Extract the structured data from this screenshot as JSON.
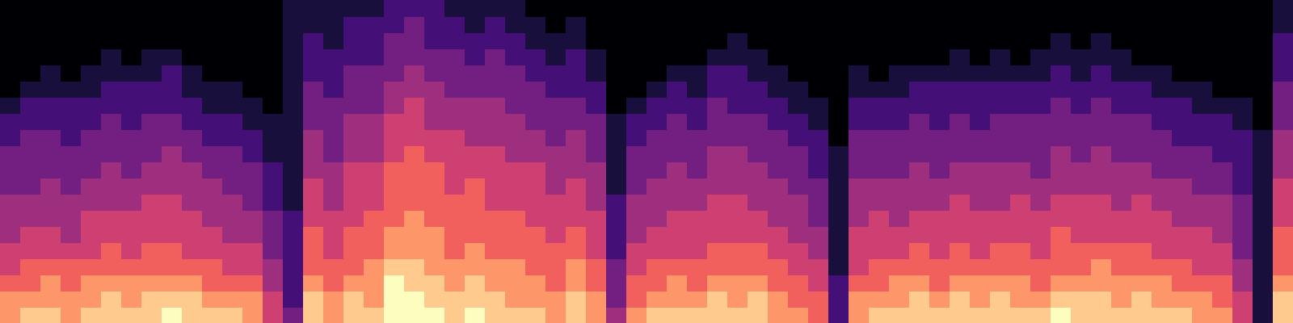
{
  "chart_data": {
    "type": "heatmap",
    "color": "magma",
    "tick_labels": false,
    "cells": [
      [
        7,
        7,
        6,
        5,
        5,
        4,
        4,
        4,
        3,
        3,
        3,
        2,
        2,
        1,
        0,
        0,
        0,
        0,
        0,
        0
      ],
      [
        8,
        7,
        6,
        6,
        5,
        5,
        4,
        4,
        3,
        3,
        3,
        3,
        2,
        2,
        1,
        0,
        0,
        0,
        0,
        0
      ],
      [
        8,
        7,
        7,
        6,
        5,
        5,
        4,
        4,
        4,
        3,
        3,
        3,
        2,
        2,
        1,
        1,
        0,
        0,
        0,
        0
      ],
      [
        7,
        7,
        6,
        6,
        5,
        4,
        4,
        4,
        3,
        3,
        3,
        2,
        2,
        2,
        1,
        0,
        0,
        0,
        0,
        0
      ],
      [
        8,
        7,
        7,
        6,
        5,
        5,
        5,
        4,
        4,
        3,
        3,
        3,
        2,
        2,
        1,
        1,
        0,
        0,
        0,
        0
      ],
      [
        8,
        8,
        7,
        6,
        6,
        5,
        5,
        4,
        4,
        4,
        3,
        3,
        3,
        2,
        2,
        1,
        1,
        0,
        0,
        0
      ],
      [
        8,
        7,
        7,
        6,
        5,
        5,
        5,
        4,
        4,
        3,
        3,
        3,
        2,
        2,
        2,
        1,
        0,
        0,
        0,
        0
      ],
      [
        8,
        8,
        7,
        6,
        6,
        5,
        5,
        5,
        4,
        4,
        3,
        3,
        3,
        2,
        2,
        1,
        1,
        0,
        0,
        0
      ],
      [
        9,
        8,
        7,
        6,
        6,
        5,
        5,
        5,
        4,
        4,
        4,
        3,
        3,
        2,
        2,
        2,
        1,
        0,
        0,
        0
      ],
      [
        8,
        8,
        7,
        6,
        5,
        5,
        5,
        4,
        4,
        4,
        3,
        3,
        2,
        2,
        1,
        1,
        0,
        0,
        0,
        0
      ],
      [
        8,
        7,
        6,
        6,
        5,
        5,
        4,
        4,
        4,
        3,
        3,
        2,
        2,
        1,
        1,
        0,
        0,
        0,
        0,
        0
      ],
      [
        8,
        7,
        6,
        5,
        5,
        4,
        4,
        4,
        3,
        3,
        3,
        2,
        2,
        1,
        1,
        0,
        0,
        0,
        0,
        0
      ],
      [
        7,
        7,
        6,
        5,
        5,
        4,
        4,
        3,
        3,
        3,
        2,
        2,
        1,
        1,
        0,
        0,
        0,
        0,
        0,
        0
      ],
      [
        5,
        5,
        4,
        4,
        3,
        3,
        3,
        2,
        2,
        2,
        1,
        1,
        1,
        0,
        0,
        0,
        0,
        0,
        0,
        0
      ],
      [
        3,
        2,
        2,
        2,
        2,
        2,
        2,
        1,
        1,
        1,
        1,
        1,
        1,
        1,
        1,
        1,
        1,
        1,
        1,
        1
      ],
      [
        8,
        8,
        7,
        6,
        6,
        6,
        5,
        5,
        5,
        4,
        4,
        4,
        3,
        3,
        3,
        2,
        2,
        2,
        1,
        1
      ],
      [
        7,
        7,
        6,
        6,
        5,
        5,
        5,
        4,
        4,
        4,
        3,
        3,
        3,
        3,
        2,
        2,
        2,
        1,
        1,
        1
      ],
      [
        8,
        8,
        7,
        6,
        6,
        6,
        5,
        5,
        5,
        5,
        4,
        4,
        4,
        3,
        3,
        3,
        2,
        2,
        2,
        1
      ],
      [
        8,
        7,
        7,
        7,
        6,
        6,
        6,
        5,
        5,
        5,
        4,
        4,
        4,
        3,
        3,
        3,
        2,
        2,
        2,
        1
      ],
      [
        9,
        9,
        9,
        8,
        7,
        7,
        6,
        6,
        6,
        6,
        5,
        5,
        5,
        4,
        4,
        3,
        3,
        3,
        2,
        2
      ],
      [
        9,
        9,
        8,
        8,
        7,
        7,
        7,
        6,
        6,
        6,
        6,
        5,
        5,
        5,
        4,
        4,
        3,
        3,
        3,
        2
      ],
      [
        9,
        8,
        8,
        7,
        7,
        7,
        6,
        6,
        6,
        6,
        5,
        5,
        4,
        4,
        4,
        3,
        3,
        2,
        2,
        2
      ],
      [
        8,
        8,
        7,
        7,
        6,
        6,
        6,
        6,
        5,
        5,
        5,
        5,
        4,
        4,
        3,
        3,
        3,
        2,
        2,
        1
      ],
      [
        9,
        8,
        8,
        7,
        7,
        6,
        6,
        6,
        6,
        5,
        5,
        4,
        4,
        4,
        3,
        3,
        2,
        2,
        1,
        1
      ],
      [
        8,
        8,
        7,
        7,
        6,
        6,
        6,
        5,
        5,
        5,
        5,
        4,
        4,
        4,
        3,
        3,
        3,
        2,
        2,
        1
      ],
      [
        8,
        7,
        7,
        7,
        6,
        6,
        6,
        5,
        5,
        5,
        4,
        4,
        4,
        3,
        3,
        3,
        2,
        2,
        1,
        1
      ],
      [
        8,
        7,
        7,
        6,
        6,
        6,
        5,
        5,
        5,
        5,
        4,
        4,
        3,
        3,
        3,
        2,
        2,
        1,
        1,
        0
      ],
      [
        7,
        7,
        6,
        6,
        6,
        5,
        5,
        5,
        4,
        4,
        4,
        3,
        3,
        3,
        2,
        2,
        1,
        1,
        0,
        0
      ],
      [
        8,
        8,
        7,
        7,
        6,
        6,
        5,
        5,
        5,
        4,
        4,
        4,
        3,
        3,
        2,
        2,
        2,
        1,
        1,
        0
      ],
      [
        7,
        7,
        6,
        6,
        5,
        5,
        5,
        4,
        4,
        4,
        3,
        3,
        3,
        2,
        2,
        1,
        1,
        0,
        0,
        0
      ],
      [
        4,
        3,
        3,
        3,
        2,
        2,
        2,
        2,
        1,
        1,
        1,
        1,
        1,
        0,
        0,
        0,
        0,
        0,
        0,
        0
      ],
      [
        7,
        6,
        6,
        5,
        5,
        4,
        4,
        4,
        3,
        3,
        3,
        2,
        2,
        1,
        0,
        0,
        0,
        0,
        0,
        0
      ],
      [
        8,
        7,
        6,
        6,
        5,
        5,
        4,
        4,
        4,
        3,
        3,
        3,
        2,
        2,
        1,
        0,
        0,
        0,
        0,
        0
      ],
      [
        8,
        7,
        7,
        6,
        5,
        5,
        5,
        4,
        4,
        4,
        3,
        3,
        3,
        2,
        2,
        1,
        0,
        0,
        0,
        0
      ],
      [
        8,
        7,
        6,
        6,
        5,
        5,
        5,
        4,
        4,
        3,
        3,
        3,
        2,
        2,
        1,
        1,
        0,
        0,
        0,
        0
      ],
      [
        8,
        8,
        7,
        6,
        6,
        5,
        5,
        5,
        4,
        4,
        4,
        3,
        3,
        3,
        2,
        2,
        1,
        0,
        0,
        0
      ],
      [
        8,
        7,
        7,
        6,
        6,
        5,
        5,
        5,
        4,
        4,
        4,
        3,
        3,
        2,
        2,
        2,
        1,
        1,
        0,
        0
      ],
      [
        8,
        8,
        7,
        6,
        6,
        5,
        5,
        4,
        4,
        4,
        3,
        3,
        3,
        2,
        2,
        1,
        1,
        0,
        0,
        0
      ],
      [
        7,
        7,
        6,
        6,
        5,
        5,
        4,
        4,
        4,
        3,
        3,
        3,
        2,
        2,
        1,
        1,
        0,
        0,
        0,
        0
      ],
      [
        7,
        6,
        6,
        5,
        5,
        4,
        4,
        4,
        3,
        3,
        3,
        2,
        2,
        1,
        1,
        0,
        0,
        0,
        0,
        0
      ],
      [
        6,
        6,
        5,
        5,
        4,
        4,
        3,
        3,
        3,
        2,
        2,
        2,
        1,
        1,
        0,
        0,
        0,
        0,
        0,
        0
      ],
      [
        2,
        2,
        2,
        1,
        1,
        1,
        1,
        1,
        1,
        1,
        1,
        0,
        0,
        0,
        0,
        0,
        0,
        0,
        0,
        0
      ],
      [
        7,
        7,
        6,
        5,
        5,
        5,
        4,
        4,
        4,
        3,
        3,
        3,
        2,
        2,
        1,
        1,
        0,
        0,
        0,
        0
      ],
      [
        8,
        7,
        6,
        6,
        5,
        5,
        5,
        4,
        4,
        3,
        3,
        3,
        2,
        2,
        1,
        0,
        0,
        0,
        0,
        0
      ],
      [
        8,
        7,
        7,
        6,
        5,
        5,
        4,
        4,
        4,
        3,
        3,
        3,
        2,
        2,
        1,
        1,
        0,
        0,
        0,
        0
      ],
      [
        8,
        8,
        7,
        6,
        6,
        5,
        5,
        4,
        4,
        4,
        3,
        3,
        3,
        2,
        2,
        1,
        0,
        0,
        0,
        0
      ],
      [
        8,
        7,
        6,
        6,
        5,
        5,
        5,
        4,
        4,
        3,
        3,
        3,
        2,
        2,
        2,
        1,
        0,
        0,
        0,
        0
      ],
      [
        8,
        8,
        7,
        6,
        6,
        5,
        5,
        5,
        4,
        4,
        3,
        3,
        3,
        2,
        2,
        1,
        1,
        0,
        0,
        0
      ],
      [
        8,
        7,
        7,
        6,
        5,
        5,
        5,
        4,
        4,
        4,
        3,
        3,
        2,
        2,
        2,
        1,
        0,
        0,
        0,
        0
      ],
      [
        8,
        8,
        7,
        6,
        6,
        5,
        5,
        4,
        4,
        4,
        3,
        3,
        3,
        2,
        2,
        1,
        1,
        0,
        0,
        0
      ],
      [
        8,
        7,
        7,
        6,
        6,
        5,
        5,
        5,
        4,
        4,
        3,
        3,
        3,
        2,
        2,
        1,
        0,
        0,
        0,
        0
      ],
      [
        8,
        7,
        6,
        6,
        5,
        5,
        5,
        4,
        4,
        3,
        3,
        3,
        3,
        2,
        2,
        1,
        1,
        0,
        0,
        0
      ],
      [
        9,
        8,
        7,
        6,
        6,
        6,
        5,
        5,
        4,
        4,
        4,
        3,
        3,
        3,
        2,
        2,
        1,
        1,
        0,
        0
      ],
      [
        8,
        8,
        7,
        6,
        6,
        5,
        5,
        5,
        4,
        4,
        3,
        3,
        3,
        2,
        2,
        1,
        1,
        0,
        0,
        0
      ],
      [
        8,
        8,
        7,
        7,
        6,
        5,
        5,
        5,
        4,
        4,
        4,
        3,
        3,
        3,
        2,
        2,
        1,
        1,
        0,
        0
      ],
      [
        8,
        7,
        7,
        6,
        6,
        5,
        5,
        4,
        4,
        4,
        3,
        3,
        3,
        2,
        2,
        1,
        1,
        0,
        0,
        0
      ],
      [
        8,
        8,
        7,
        6,
        6,
        5,
        5,
        5,
        4,
        4,
        3,
        3,
        3,
        2,
        2,
        1,
        0,
        0,
        0,
        0
      ],
      [
        8,
        7,
        7,
        6,
        5,
        5,
        5,
        4,
        4,
        3,
        3,
        3,
        2,
        2,
        1,
        1,
        0,
        0,
        0,
        0
      ],
      [
        8,
        7,
        6,
        6,
        5,
        5,
        4,
        4,
        4,
        3,
        3,
        2,
        2,
        2,
        1,
        0,
        0,
        0,
        0,
        0
      ],
      [
        7,
        7,
        6,
        5,
        5,
        5,
        4,
        4,
        3,
        3,
        3,
        2,
        2,
        1,
        1,
        0,
        0,
        0,
        0,
        0
      ],
      [
        7,
        6,
        6,
        5,
        5,
        4,
        4,
        4,
        3,
        3,
        2,
        2,
        2,
        1,
        0,
        0,
        0,
        0,
        0,
        0
      ],
      [
        5,
        5,
        4,
        4,
        3,
        3,
        3,
        3,
        2,
        2,
        2,
        2,
        1,
        1,
        0,
        0,
        0,
        0,
        0,
        0
      ],
      [
        1,
        1,
        1,
        1,
        1,
        1,
        1,
        1,
        1,
        1,
        1,
        1,
        0,
        0,
        0,
        0,
        0,
        0,
        0,
        0
      ],
      [
        8,
        8,
        7,
        6,
        6,
        6,
        5,
        5,
        5,
        4,
        4,
        4,
        3,
        3,
        3,
        2,
        2,
        2,
        1,
        1
      ]
    ]
  }
}
